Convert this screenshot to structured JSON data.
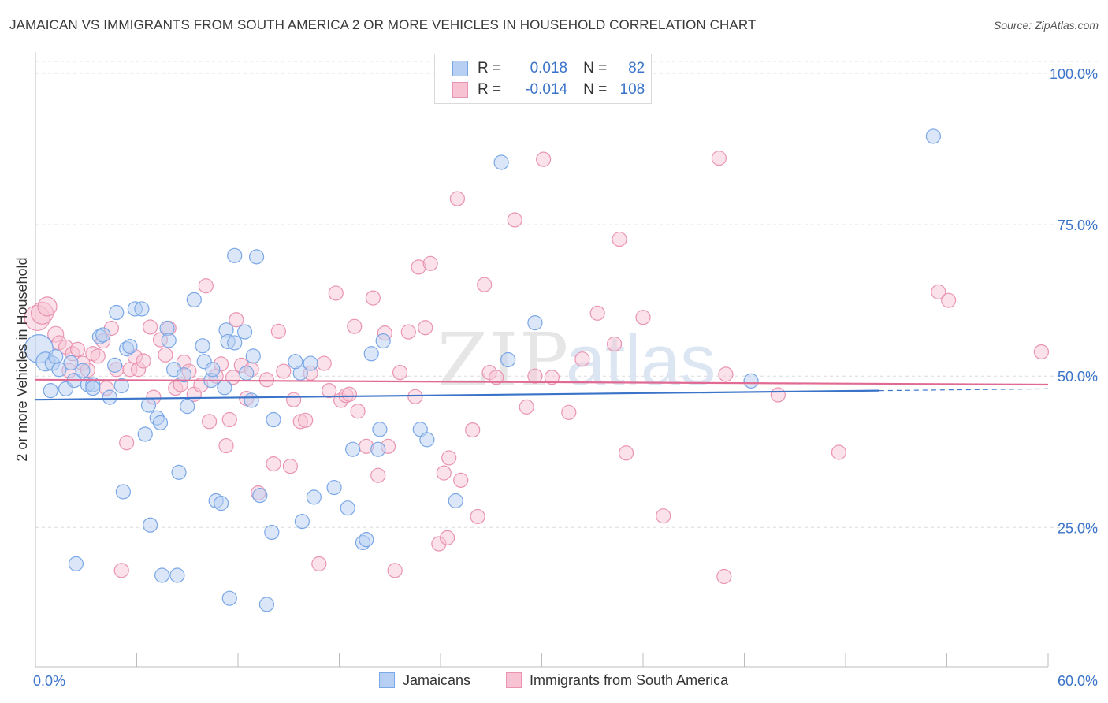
{
  "title": "JAMAICAN VS IMMIGRANTS FROM SOUTH AMERICA 2 OR MORE VEHICLES IN HOUSEHOLD CORRELATION CHART",
  "source": "Source: ZipAtlas.com",
  "watermark": {
    "zip": "ZIP",
    "atlas": "atlas"
  },
  "legend": {
    "r_label": "R =",
    "n_label": "N =",
    "rows": [
      {
        "r": "0.018",
        "n": "82",
        "fill": "#b7cff2",
        "stroke": "#7aa7e6"
      },
      {
        "r": "-0.014",
        "n": "108",
        "fill": "#f7c3d3",
        "stroke": "#e994b2"
      }
    ]
  },
  "bottom_legend": [
    "Jamaicans",
    "Immigrants from South America"
  ],
  "chart_data": {
    "type": "scatter",
    "title": "JAMAICAN VS IMMIGRANTS FROM SOUTH AMERICA 2 OR MORE VEHICLES IN HOUSEHOLD CORRELATION CHART",
    "xlabel": "",
    "ylabel": "2 or more Vehicles in Household",
    "xlim": [
      0,
      60
    ],
    "ylim": [
      2,
      103
    ],
    "x_tick_labels": [
      "0.0%",
      "60.0%"
    ],
    "y_ticks": [
      25,
      50,
      75,
      100
    ],
    "y_tick_labels": [
      "25.0%",
      "50.0%",
      "75.0%",
      "100.0%"
    ],
    "grid": true,
    "legend_position": "top-center",
    "series": [
      {
        "name": "Jamaicans",
        "color": "#3a73c8",
        "fill": "#b7cff2",
        "stroke": "#7aa7e6",
        "trend": {
          "x0": 0,
          "y0": 46.1,
          "x1": 50,
          "y1": 47.6,
          "dashed_to_x": 60,
          "dashed_to_y": 47.9
        },
        "points": [
          [
            0.2,
            54.5,
            18
          ],
          [
            0.6,
            52.4,
            12
          ],
          [
            0.9,
            47.6,
            9
          ],
          [
            1.0,
            52.1,
            9
          ],
          [
            1.2,
            53.2,
            9
          ],
          [
            1.4,
            51.1,
            9
          ],
          [
            1.8,
            47.9,
            9
          ],
          [
            2.1,
            52.2,
            9
          ],
          [
            2.3,
            49.3,
            9
          ],
          [
            2.8,
            50.9,
            9
          ],
          [
            3.1,
            48.6,
            9
          ],
          [
            3.4,
            48.6,
            9
          ],
          [
            3.8,
            56.5,
            9
          ],
          [
            4.0,
            56.8,
            9
          ],
          [
            4.4,
            46.5,
            9
          ],
          [
            4.7,
            51.8,
            9
          ],
          [
            4.8,
            60.5,
            9
          ],
          [
            5.1,
            48.4,
            9
          ],
          [
            5.4,
            54.5,
            9
          ],
          [
            5.6,
            54.9,
            9
          ],
          [
            5.9,
            61.1,
            9
          ],
          [
            6.3,
            61.1,
            9
          ],
          [
            6.5,
            40.4,
            9
          ],
          [
            6.7,
            45.2,
            9
          ],
          [
            6.8,
            25.4,
            9
          ],
          [
            7.2,
            43.1,
            9
          ],
          [
            7.4,
            42.3,
            9
          ],
          [
            7.8,
            57.9,
            9
          ],
          [
            7.9,
            55.9,
            9
          ],
          [
            8.2,
            51.1,
            9
          ],
          [
            8.5,
            34.1,
            9
          ],
          [
            8.8,
            50.2,
            9
          ],
          [
            9.0,
            45.0,
            9
          ],
          [
            9.4,
            62.6,
            9
          ],
          [
            9.9,
            55.0,
            9
          ],
          [
            10.0,
            52.4,
            9
          ],
          [
            10.4,
            49.3,
            9
          ],
          [
            10.5,
            51.1,
            9
          ],
          [
            10.7,
            29.4,
            9
          ],
          [
            11.0,
            29.0,
            9
          ],
          [
            11.3,
            57.6,
            9
          ],
          [
            11.4,
            55.7,
            9
          ],
          [
            11.5,
            13.3,
            9
          ],
          [
            11.8,
            55.5,
            9
          ],
          [
            11.8,
            69.9,
            9
          ],
          [
            12.5,
            50.5,
            9
          ],
          [
            12.8,
            46.0,
            9
          ],
          [
            12.9,
            53.3,
            9
          ],
          [
            13.1,
            69.7,
            9
          ],
          [
            13.7,
            12.3,
            9
          ],
          [
            14.0,
            24.2,
            9
          ],
          [
            14.1,
            42.8,
            9
          ],
          [
            15.7,
            50.5,
            9
          ],
          [
            15.8,
            26.0,
            9
          ],
          [
            16.3,
            52.1,
            9
          ],
          [
            17.7,
            31.6,
            9
          ],
          [
            18.5,
            28.2,
            9
          ],
          [
            18.8,
            37.9,
            9
          ],
          [
            19.4,
            22.5,
            9
          ],
          [
            19.6,
            23.0,
            9
          ],
          [
            20.3,
            37.9,
            9
          ],
          [
            20.4,
            41.2,
            9
          ],
          [
            22.8,
            41.2,
            9
          ],
          [
            23.2,
            39.5,
            9
          ],
          [
            24.9,
            29.4,
            9
          ],
          [
            27.6,
            85.3,
            9
          ],
          [
            28.0,
            52.7,
            9
          ],
          [
            29.6,
            58.8,
            9
          ],
          [
            42.4,
            49.2,
            9
          ],
          [
            53.2,
            89.6,
            9
          ],
          [
            3.4,
            48.0,
            9
          ],
          [
            7.5,
            17.1,
            9
          ],
          [
            5.2,
            30.9,
            9
          ],
          [
            2.4,
            19.0,
            9
          ],
          [
            13.3,
            30.3,
            9
          ],
          [
            16.5,
            30.0,
            9
          ],
          [
            20.6,
            55.8,
            9
          ],
          [
            19.9,
            53.7,
            9
          ],
          [
            15.4,
            52.4,
            9
          ],
          [
            12.4,
            57.3,
            9
          ],
          [
            8.4,
            17.1,
            9
          ],
          [
            11.2,
            48.1,
            9
          ]
        ]
      },
      {
        "name": "Immigrants from South America",
        "color": "#e06a93",
        "fill": "#f7c3d3",
        "stroke": "#e994b2",
        "trend": {
          "x0": 0,
          "y0": 49.4,
          "x1": 60,
          "y1": 48.6
        },
        "points": [
          [
            0.1,
            59.6,
            16
          ],
          [
            0.4,
            60.4,
            14
          ],
          [
            0.7,
            61.5,
            12
          ],
          [
            1.2,
            56.9,
            10
          ],
          [
            1.4,
            55.5,
            9
          ],
          [
            1.8,
            54.8,
            9
          ],
          [
            2.0,
            50.9,
            9
          ],
          [
            2.2,
            53.7,
            9
          ],
          [
            2.5,
            54.4,
            9
          ],
          [
            2.8,
            52.1,
            9
          ],
          [
            3.1,
            51.0,
            9
          ],
          [
            3.4,
            53.7,
            9
          ],
          [
            3.7,
            53.3,
            9
          ],
          [
            4.0,
            55.8,
            9
          ],
          [
            4.2,
            48.0,
            9
          ],
          [
            4.5,
            57.9,
            9
          ],
          [
            4.8,
            51.1,
            9
          ],
          [
            5.1,
            17.9,
            9
          ],
          [
            5.4,
            39.0,
            9
          ],
          [
            5.6,
            51.1,
            9
          ],
          [
            5.9,
            53.2,
            9
          ],
          [
            6.1,
            51.1,
            9
          ],
          [
            6.4,
            52.5,
            9
          ],
          [
            6.8,
            58.1,
            9
          ],
          [
            7.0,
            46.5,
            9
          ],
          [
            7.4,
            56.0,
            9
          ],
          [
            7.7,
            53.5,
            9
          ],
          [
            7.9,
            57.9,
            9
          ],
          [
            8.3,
            48.0,
            9
          ],
          [
            8.6,
            48.6,
            9
          ],
          [
            8.8,
            52.3,
            9
          ],
          [
            9.1,
            50.8,
            9
          ],
          [
            9.4,
            47.0,
            9
          ],
          [
            9.8,
            48.5,
            9
          ],
          [
            10.1,
            64.9,
            9
          ],
          [
            10.3,
            42.5,
            9
          ],
          [
            10.7,
            50.0,
            9
          ],
          [
            11.0,
            52.0,
            9
          ],
          [
            11.3,
            38.5,
            9
          ],
          [
            11.5,
            42.8,
            9
          ],
          [
            11.7,
            49.8,
            9
          ],
          [
            11.9,
            59.3,
            9
          ],
          [
            12.2,
            51.8,
            9
          ],
          [
            12.5,
            46.3,
            9
          ],
          [
            12.8,
            51.1,
            9
          ],
          [
            13.2,
            30.7,
            9
          ],
          [
            13.7,
            49.4,
            9
          ],
          [
            14.1,
            35.5,
            9
          ],
          [
            14.4,
            57.4,
            9
          ],
          [
            14.7,
            50.8,
            9
          ],
          [
            15.1,
            35.1,
            9
          ],
          [
            15.3,
            46.1,
            9
          ],
          [
            15.7,
            42.5,
            9
          ],
          [
            16.0,
            42.7,
            9
          ],
          [
            16.3,
            50.5,
            9
          ],
          [
            16.8,
            19.0,
            9
          ],
          [
            17.1,
            52.1,
            9
          ],
          [
            17.4,
            47.6,
            9
          ],
          [
            17.8,
            63.7,
            9
          ],
          [
            18.1,
            46.0,
            9
          ],
          [
            18.4,
            46.8,
            9
          ],
          [
            18.6,
            47.0,
            9
          ],
          [
            18.9,
            58.2,
            9
          ],
          [
            19.1,
            44.2,
            9
          ],
          [
            19.6,
            38.4,
            9
          ],
          [
            20.0,
            62.9,
            9
          ],
          [
            20.3,
            33.6,
            9
          ],
          [
            20.7,
            57.1,
            9
          ],
          [
            20.9,
            38.4,
            9
          ],
          [
            21.3,
            17.9,
            9
          ],
          [
            21.6,
            50.6,
            9
          ],
          [
            22.1,
            57.3,
            9
          ],
          [
            22.5,
            46.6,
            9
          ],
          [
            22.7,
            68.0,
            9
          ],
          [
            23.1,
            58.0,
            9
          ],
          [
            23.4,
            68.6,
            9
          ],
          [
            23.9,
            22.3,
            9
          ],
          [
            24.2,
            34.0,
            9
          ],
          [
            24.4,
            23.3,
            9
          ],
          [
            24.5,
            36.5,
            9
          ],
          [
            25.0,
            79.3,
            9
          ],
          [
            25.2,
            32.8,
            9
          ],
          [
            25.9,
            41.1,
            9
          ],
          [
            26.2,
            26.8,
            9
          ],
          [
            26.6,
            65.1,
            9
          ],
          [
            26.9,
            50.6,
            9
          ],
          [
            27.3,
            49.8,
            9
          ],
          [
            28.4,
            75.8,
            9
          ],
          [
            29.1,
            44.9,
            9
          ],
          [
            29.6,
            50.0,
            9
          ],
          [
            30.1,
            85.8,
            9
          ],
          [
            30.6,
            49.8,
            9
          ],
          [
            31.6,
            44.0,
            9
          ],
          [
            32.4,
            52.8,
            9
          ],
          [
            33.3,
            60.4,
            9
          ],
          [
            34.3,
            55.3,
            9
          ],
          [
            34.6,
            72.6,
            9
          ],
          [
            35.0,
            37.3,
            9
          ],
          [
            36.0,
            59.7,
            9
          ],
          [
            37.2,
            26.9,
            9
          ],
          [
            40.5,
            86.0,
            9
          ],
          [
            40.8,
            16.9,
            9
          ],
          [
            40.9,
            50.3,
            9
          ],
          [
            44.0,
            46.9,
            9
          ],
          [
            47.6,
            37.4,
            9
          ],
          [
            53.5,
            63.9,
            9
          ],
          [
            54.1,
            62.5,
            9
          ],
          [
            59.6,
            54.0,
            9
          ]
        ]
      }
    ]
  }
}
